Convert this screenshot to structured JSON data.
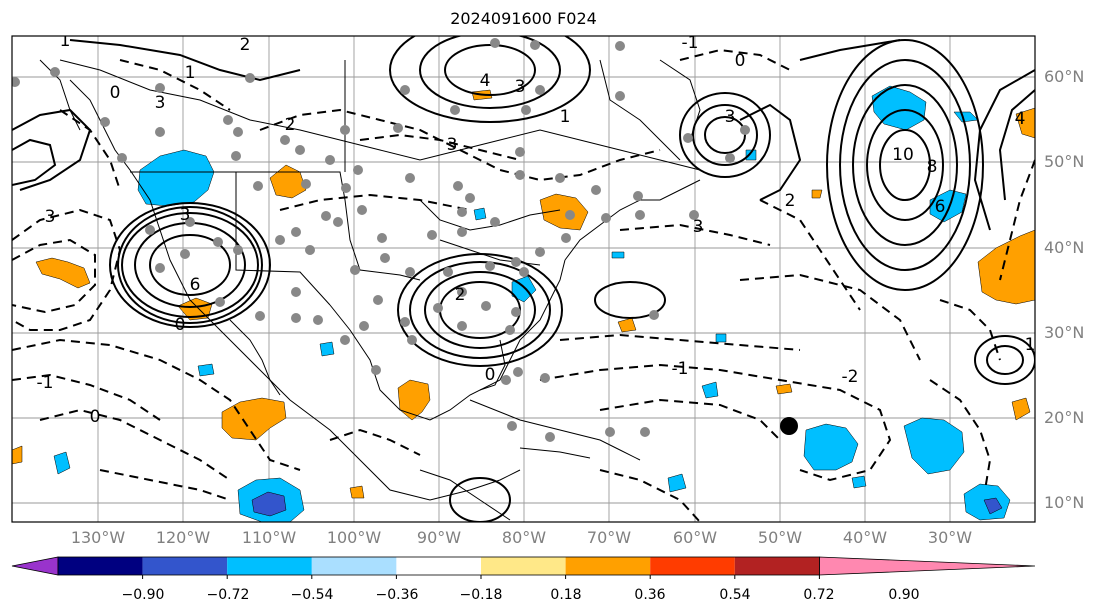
{
  "title": "2024091600 F024",
  "lat_labels": [
    "60°N",
    "50°N",
    "40°N",
    "30°N",
    "20°N",
    "10°N"
  ],
  "lon_labels": [
    "130°W",
    "120°W",
    "110°W",
    "100°W",
    "90°W",
    "80°W",
    "70°W",
    "60°W",
    "50°W",
    "40°W",
    "30°W"
  ],
  "colorbar": {
    "tick_labels": [
      "−0.90",
      "−0.72",
      "−0.54",
      "−0.36",
      "−0.18",
      "0.18",
      "0.36",
      "0.54",
      "0.72",
      "0.90"
    ],
    "colors": [
      "#9933cc",
      "#000080",
      "#3355cc",
      "#00bfff",
      "#aadfff",
      "#ffffff",
      "#ffe888",
      "#ffa000",
      "#ff3c00",
      "#b22222",
      "#ff88b0"
    ]
  },
  "contour_labels": [
    "1",
    "1",
    "2",
    "0",
    "3",
    "4",
    "3",
    "-1",
    "0",
    "1",
    "3",
    "3",
    "2",
    "10",
    "8",
    "6",
    "2",
    "4",
    "3",
    "3",
    "6",
    "3",
    "2",
    "-1",
    "0",
    "-1",
    "-2",
    "0",
    "0",
    "1"
  ]
}
